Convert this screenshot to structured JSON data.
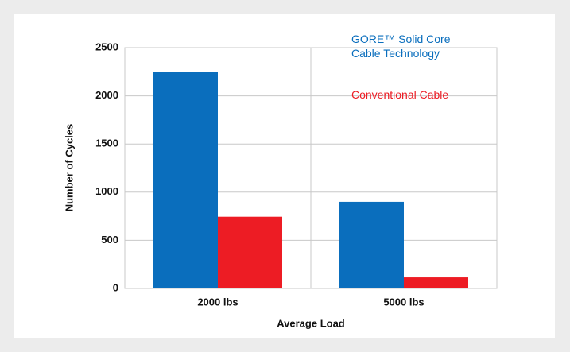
{
  "chart_data": {
    "type": "bar",
    "categories": [
      "2000 lbs",
      "5000 lbs"
    ],
    "series": [
      {
        "name": "GORE™ Solid Core Cable Technology",
        "color": "#0a6ebd",
        "values": [
          2250,
          900
        ]
      },
      {
        "name": "Conventional Cable",
        "color": "#ed1c24",
        "values": [
          745,
          115
        ]
      }
    ],
    "ylim": [
      0,
      2500
    ],
    "yticks": [
      0,
      500,
      1000,
      1500,
      2000,
      2500
    ],
    "grid": true,
    "y_label": "Number of Cycles",
    "x_label": "Average Load",
    "legend": "upper right"
  }
}
